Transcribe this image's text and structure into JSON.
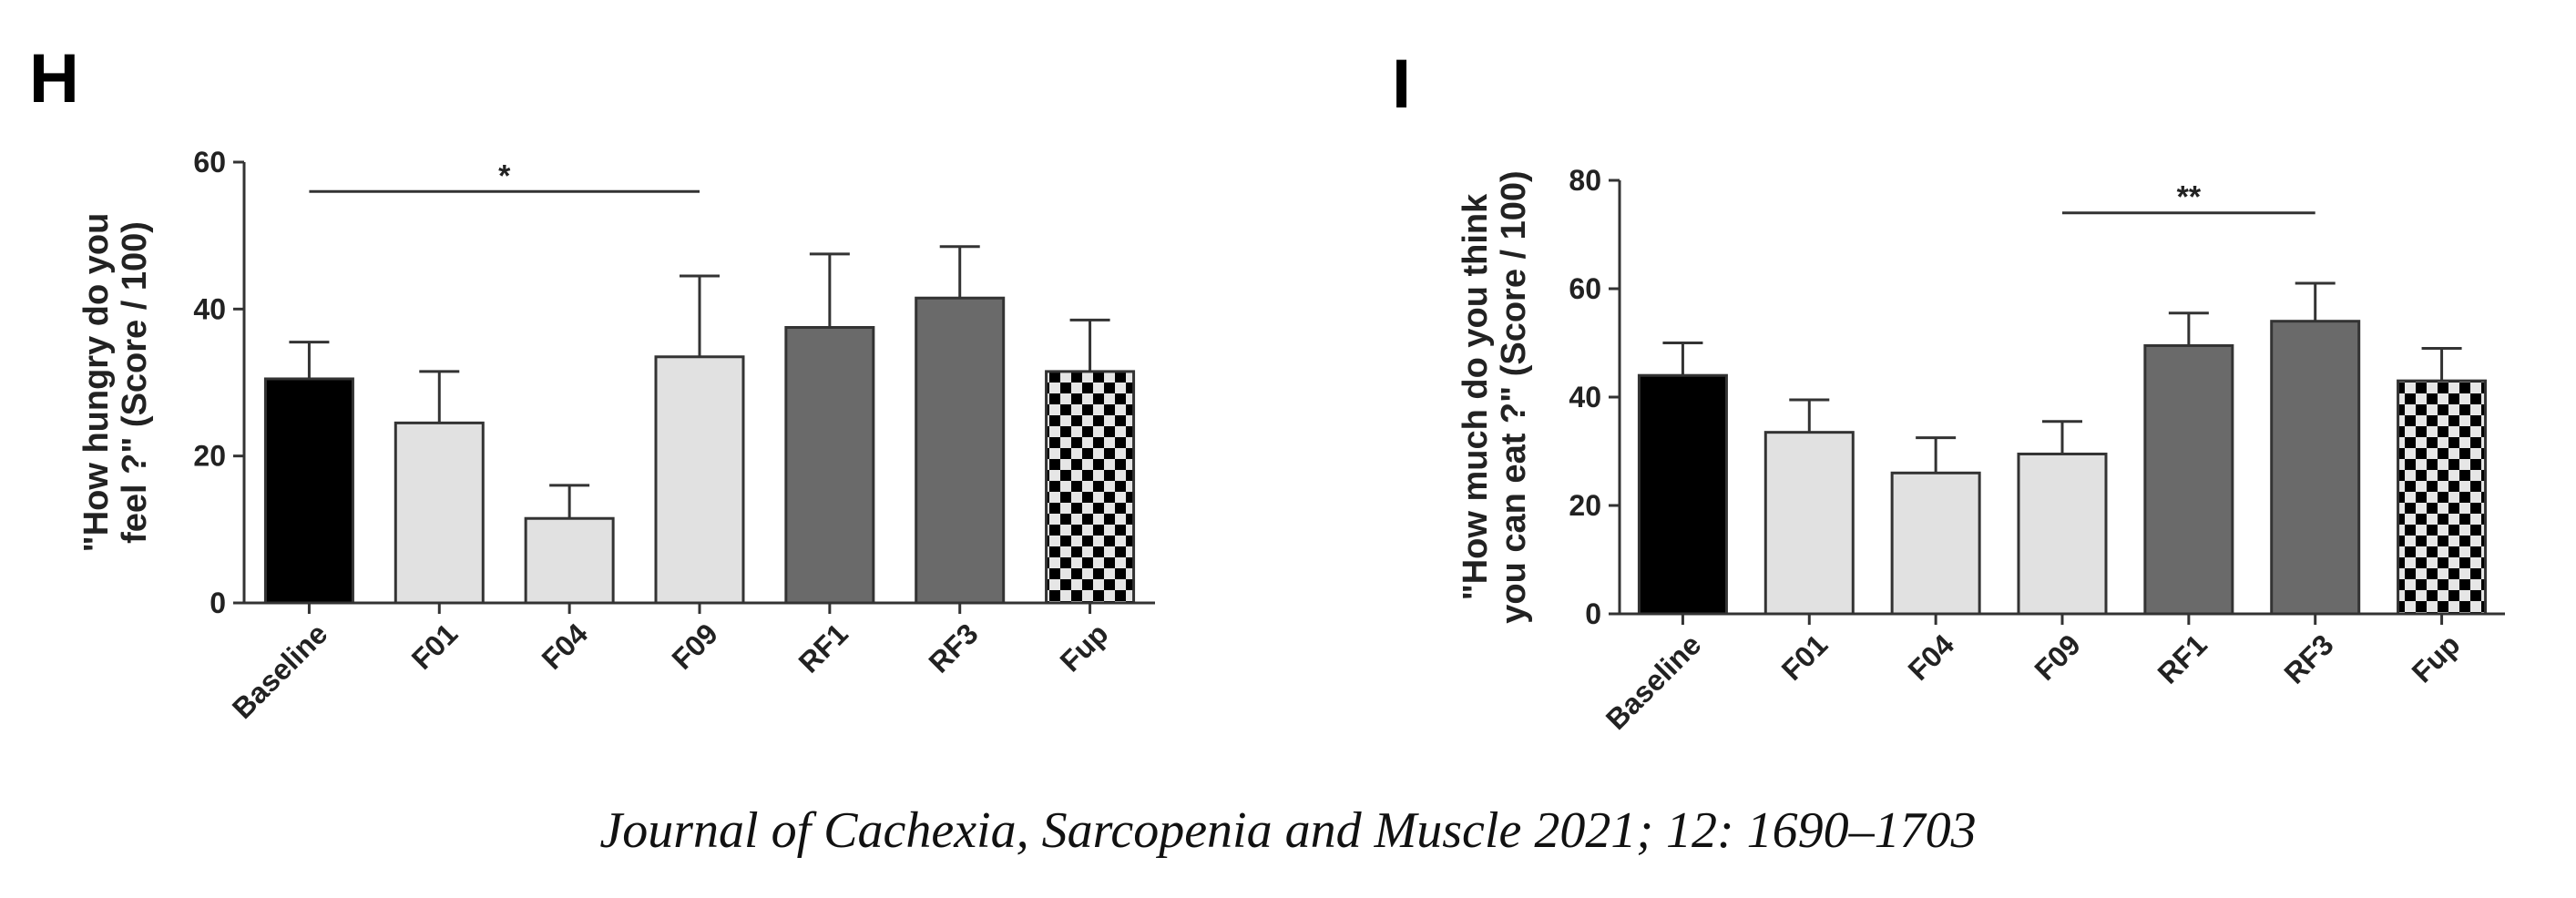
{
  "citation": "Journal of Cachexia, Sarcopenia and Muscle 2021; 12: 1690–1703",
  "chart_data": [
    {
      "panel": "H",
      "type": "bar",
      "ylabel": [
        "\"How hungry do you",
        "feel ?\" (Score / 100)"
      ],
      "categories": [
        "Baseline",
        "F01",
        "F04",
        "F09",
        "RF1",
        "RF3",
        "Fup"
      ],
      "values": [
        30.5,
        24.5,
        11.5,
        33.5,
        37.5,
        41.5,
        31.5
      ],
      "errors": [
        5,
        7,
        4.5,
        11,
        10,
        7,
        7
      ],
      "fills": [
        "black",
        "light",
        "light",
        "light",
        "dark",
        "dark",
        "checker"
      ],
      "ylim": [
        0,
        60
      ],
      "yticks": [
        0,
        20,
        40,
        60
      ],
      "significance": [
        {
          "from": 0,
          "to": 3,
          "label": "*",
          "y": 56
        }
      ]
    },
    {
      "panel": "I",
      "type": "bar",
      "ylabel": [
        "\"How much do you think",
        "you can eat ?\" (Score / 100)"
      ],
      "categories": [
        "Baseline",
        "F01",
        "F04",
        "F09",
        "RF1",
        "RF3",
        "Fup"
      ],
      "values": [
        44,
        33.5,
        26,
        29.5,
        49.5,
        54,
        43
      ],
      "errors": [
        6,
        6,
        6.5,
        6,
        6,
        7,
        6
      ],
      "fills": [
        "black",
        "light",
        "light",
        "light",
        "dark",
        "dark",
        "checker"
      ],
      "ylim": [
        0,
        80
      ],
      "yticks": [
        0,
        20,
        40,
        60,
        80
      ],
      "significance": [
        {
          "from": 3,
          "to": 5,
          "label": "**",
          "y": 74
        }
      ]
    }
  ],
  "colors": {
    "black": "#000000",
    "light": "#e1e1e1",
    "dark": "#6a6a6a",
    "axis": "#333333",
    "checkerA": "#000000",
    "checkerB": "#e6e6e6"
  }
}
